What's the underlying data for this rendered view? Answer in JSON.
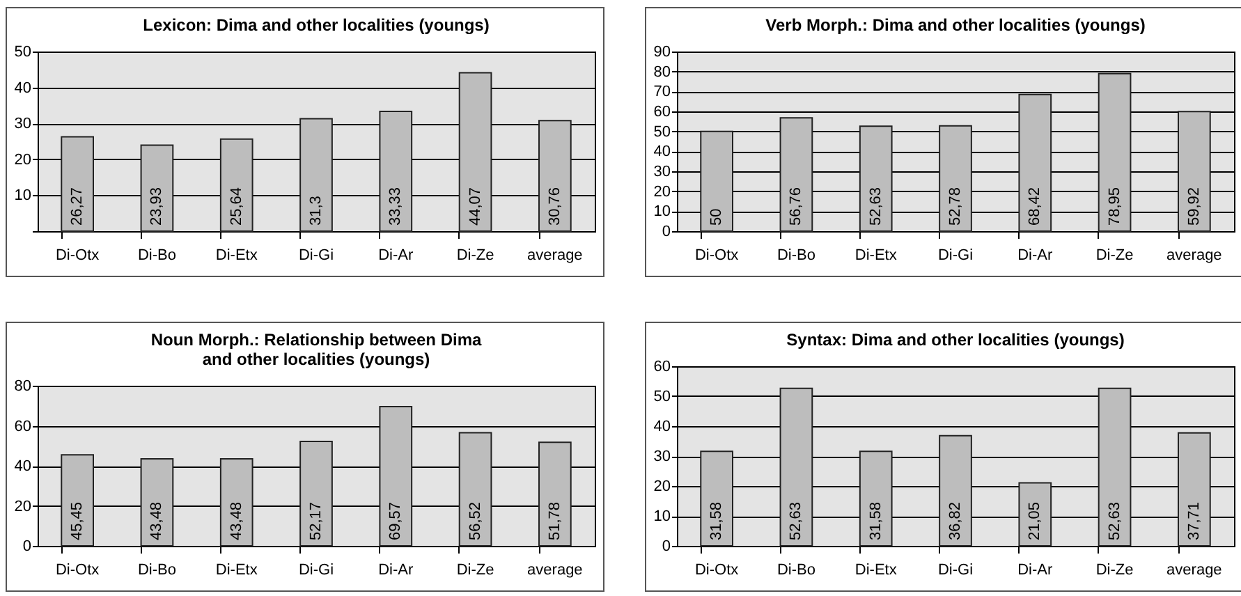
{
  "chart_data": [
    {
      "type": "bar",
      "title": "Lexicon: Dima and other localities (youngs)",
      "categories": [
        "Di-Otx",
        "Di-Bo",
        "Di-Etx",
        "Di-Gi",
        "Di-Ar",
        "Di-Ze",
        "average"
      ],
      "values": [
        26.27,
        23.93,
        25.64,
        31.3,
        33.33,
        44.07,
        30.76
      ],
      "value_labels": [
        "26,27",
        "23,93",
        "25,64",
        "31,3",
        "33,33",
        "44,07",
        "30,76"
      ],
      "color": "#bdbdbd",
      "ylim": [
        0,
        50
      ],
      "yticks": [
        {
          "value": 0,
          "label": null
        },
        10,
        20,
        30,
        40,
        50
      ],
      "grid": "y"
    },
    {
      "type": "bar",
      "title": "Verb Morph.: Dima and other localities (youngs)",
      "categories": [
        "Di-Otx",
        "Di-Bo",
        "Di-Etx",
        "Di-Gi",
        "Di-Ar",
        "Di-Ze",
        "average"
      ],
      "values": [
        50,
        56.76,
        52.63,
        52.78,
        68.42,
        78.95,
        59.92
      ],
      "value_labels": [
        "50",
        "56,76",
        "52,63",
        "52,78",
        "68,42",
        "78,95",
        "59,92"
      ],
      "color": "#bdbdbd",
      "ylim": [
        0,
        90
      ],
      "yticks": [
        0,
        10,
        20,
        30,
        40,
        50,
        60,
        70,
        80,
        90
      ],
      "grid": "y"
    },
    {
      "type": "bar",
      "title": "Noun Morph.: Relationship between Dima\nand other localities (youngs)",
      "categories": [
        "Di-Otx",
        "Di-Bo",
        "Di-Etx",
        "Di-Gi",
        "Di-Ar",
        "Di-Ze",
        "average"
      ],
      "values": [
        45.45,
        43.48,
        43.48,
        52.17,
        69.57,
        56.52,
        51.78
      ],
      "value_labels": [
        "45,45",
        "43,48",
        "43,48",
        "52,17",
        "69,57",
        "56,52",
        "51,78"
      ],
      "color": "#bdbdbd",
      "ylim": [
        0,
        80
      ],
      "yticks": [
        0,
        20,
        40,
        60,
        80
      ],
      "grid": "y"
    },
    {
      "type": "bar",
      "title": "Syntax: Dima and other localities (youngs)",
      "categories": [
        "Di-Otx",
        "Di-Bo",
        "Di-Etx",
        "Di-Gi",
        "Di-Ar",
        "Di-Ze",
        "average"
      ],
      "values": [
        31.58,
        52.63,
        31.58,
        36.82,
        21.05,
        52.63,
        37.71
      ],
      "value_labels": [
        "31,58",
        "52,63",
        "31,58",
        "36,82",
        "21,05",
        "52,63",
        "37,71"
      ],
      "color": "#bdbdbd",
      "ylim": [
        0,
        60
      ],
      "yticks": [
        0,
        10,
        20,
        30,
        40,
        50,
        60
      ],
      "grid": "y"
    }
  ]
}
